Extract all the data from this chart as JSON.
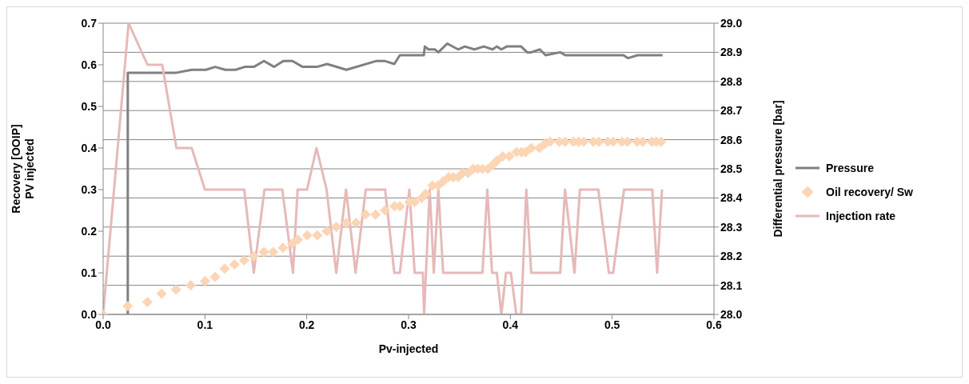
{
  "chart_data": {
    "type": "line",
    "xlabel": "Pv-injected",
    "ylabel": "Recovery [OOIP]\nPV injected",
    "y2label": "Differential pressure [bar]",
    "xlim": [
      0,
      0.6
    ],
    "xticks": [
      {
        "value": 0,
        "label": "0.0"
      },
      {
        "value": 0.1,
        "label": "0.1"
      },
      {
        "value": 0.2,
        "label": "0.2"
      },
      {
        "value": 0.3,
        "label": "0.3"
      },
      {
        "value": 0.4,
        "label": "0.4"
      },
      {
        "value": 0.5,
        "label": "0.5"
      },
      {
        "value": 0.6,
        "label": "0.6"
      }
    ],
    "ylim": [
      0,
      0.7
    ],
    "yticks": [
      {
        "value": 0,
        "label": "0.0"
      },
      {
        "value": 0.1,
        "label": "0.1"
      },
      {
        "value": 0.2,
        "label": "0.2"
      },
      {
        "value": 0.3,
        "label": "0.3"
      },
      {
        "value": 0.4,
        "label": "0.4"
      },
      {
        "value": 0.5,
        "label": "0.5"
      },
      {
        "value": 0.6,
        "label": "0.6"
      },
      {
        "value": 0.7,
        "label": "0.7"
      }
    ],
    "y2lim": [
      28,
      29
    ],
    "y2ticks": [
      {
        "value": 28,
        "label": "28.0"
      },
      {
        "value": 28.1,
        "label": "28.1"
      },
      {
        "value": 28.2,
        "label": "28.2"
      },
      {
        "value": 28.3,
        "label": "28.3"
      },
      {
        "value": 28.4,
        "label": "28.4"
      },
      {
        "value": 28.5,
        "label": "28.5"
      },
      {
        "value": 28.6,
        "label": "28.6"
      },
      {
        "value": 28.7,
        "label": "28.7"
      },
      {
        "value": 28.8,
        "label": "28.8"
      },
      {
        "value": 28.9,
        "label": "28.9"
      },
      {
        "value": 29,
        "label": "29.0"
      }
    ],
    "grid": "y",
    "legend": "right",
    "line_style": "solid",
    "series": [
      {
        "name": "Pressure",
        "axis": "y2",
        "color": "#808080",
        "marker": "none",
        "x": [
          0.0242,
          0.0242,
          0.072,
          0.087,
          0.101,
          0.11,
          0.12,
          0.13,
          0.139,
          0.148,
          0.158,
          0.168,
          0.177,
          0.186,
          0.196,
          0.201,
          0.21,
          0.22,
          0.239,
          0.268,
          0.277,
          0.286,
          0.2915,
          0.315,
          0.316,
          0.3195,
          0.326,
          0.3293,
          0.338,
          0.3487,
          0.3553,
          0.3646,
          0.374,
          0.3825,
          0.3867,
          0.3912,
          0.3965,
          0.4106,
          0.4165,
          0.4205,
          0.429,
          0.4346,
          0.449,
          0.454,
          0.511,
          0.5157,
          0.525,
          0.5495
        ],
        "values": [
          28.0,
          28.83,
          28.83,
          28.84,
          28.84,
          28.85,
          28.84,
          28.84,
          28.85,
          28.85,
          28.87,
          28.85,
          28.87,
          28.87,
          28.85,
          28.85,
          28.85,
          28.86,
          28.84,
          28.87,
          28.87,
          28.86,
          28.89,
          28.89,
          28.92,
          28.91,
          28.91,
          28.9,
          28.93,
          28.91,
          28.92,
          28.91,
          28.92,
          28.91,
          28.92,
          28.91,
          28.92,
          28.92,
          28.9,
          28.9,
          28.91,
          28.89,
          28.9,
          28.89,
          28.89,
          28.88,
          28.89,
          28.89
        ]
      },
      {
        "name": "Oil recovery/ Sw",
        "type": "scatter",
        "axis": "y",
        "color": "#fcd5b5",
        "marker": "diamond",
        "x": [
          0,
          0.0242,
          0.0434,
          0.0575,
          0.0716,
          0.086,
          0.1,
          0.11,
          0.1194,
          0.129,
          0.1386,
          0.148,
          0.158,
          0.167,
          0.1766,
          0.1857,
          0.1912,
          0.2005,
          0.2104,
          0.2197,
          0.229,
          0.2388,
          0.2484,
          0.2577,
          0.2676,
          0.2769,
          0.2862,
          0.2915,
          0.3008,
          0.3061,
          0.313,
          0.3168,
          0.3234,
          0.329,
          0.334,
          0.3394,
          0.344,
          0.3487,
          0.3532,
          0.3585,
          0.3633,
          0.368,
          0.3726,
          0.378,
          0.383,
          0.387,
          0.3926,
          0.399,
          0.406,
          0.411,
          0.415,
          0.4205,
          0.4285,
          0.434,
          0.439,
          0.448,
          0.4537,
          0.462,
          0.467,
          0.472,
          0.4816,
          0.487,
          0.4957,
          0.501,
          0.5096,
          0.515,
          0.5245,
          0.53,
          0.539,
          0.5435,
          0.548
        ],
        "values": [
          0,
          0.02,
          0.03,
          0.05,
          0.06,
          0.07,
          0.08,
          0.09,
          0.11,
          0.12,
          0.13,
          0.14,
          0.15,
          0.15,
          0.16,
          0.17,
          0.18,
          0.19,
          0.19,
          0.2,
          0.21,
          0.22,
          0.22,
          0.24,
          0.24,
          0.25,
          0.26,
          0.26,
          0.27,
          0.27,
          0.28,
          0.29,
          0.31,
          0.31,
          0.32,
          0.33,
          0.33,
          0.33,
          0.34,
          0.34,
          0.35,
          0.35,
          0.35,
          0.35,
          0.36,
          0.37,
          0.38,
          0.38,
          0.39,
          0.39,
          0.39,
          0.4,
          0.4,
          0.41,
          0.415,
          0.415,
          0.415,
          0.415,
          0.415,
          0.415,
          0.415,
          0.415,
          0.415,
          0.415,
          0.415,
          0.415,
          0.415,
          0.415,
          0.415,
          0.415,
          0.415
        ]
      },
      {
        "name": "Injection rate",
        "axis": "y",
        "color": "#e6b9b8",
        "marker": "none",
        "x": [
          0,
          0.025,
          0.0436,
          0.058,
          0.072,
          0.087,
          0.1,
          0.1386,
          0.148,
          0.1585,
          0.176,
          0.1865,
          0.191,
          0.2003,
          0.2096,
          0.2195,
          0.229,
          0.2386,
          0.248,
          0.258,
          0.277,
          0.286,
          0.2915,
          0.3008,
          0.306,
          0.314,
          0.3153,
          0.3208,
          0.3248,
          0.3293,
          0.334,
          0.3726,
          0.3774,
          0.382,
          0.3867,
          0.3912,
          0.3957,
          0.4005,
          0.4059,
          0.4106,
          0.4157,
          0.4205,
          0.449,
          0.4537,
          0.463,
          0.4683,
          0.4864,
          0.4968,
          0.501,
          0.5117,
          0.5394,
          0.5442,
          0.549
        ],
        "values": [
          0,
          0.7,
          0.6,
          0.6,
          0.4,
          0.4,
          0.3,
          0.3,
          0.1,
          0.3,
          0.3,
          0.1,
          0.3,
          0.3,
          0.4,
          0.3,
          0.1,
          0.3,
          0.1,
          0.3,
          0.3,
          0.1,
          0.1,
          0.3,
          0.1,
          0.1,
          0,
          0.3,
          0.1,
          0.3,
          0.1,
          0.1,
          0.3,
          0.1,
          0.1,
          0,
          0.1,
          0.1,
          0,
          0,
          0.3,
          0.1,
          0.1,
          0.3,
          0.1,
          0.3,
          0.3,
          0.1,
          0.1,
          0.3,
          0.3,
          0.1,
          0.3
        ]
      }
    ]
  }
}
